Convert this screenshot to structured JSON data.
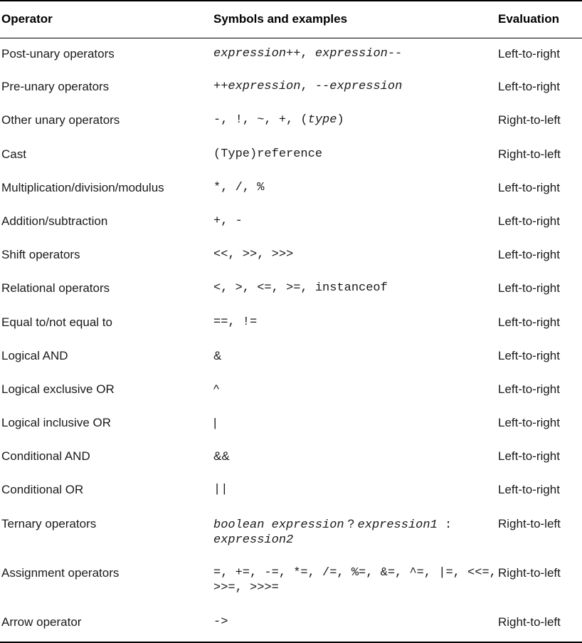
{
  "headers": {
    "operator": "Operator",
    "symbols": "Symbols and examples",
    "evaluation": "Evaluation"
  },
  "rows": [
    {
      "operator": "Post-unary operators",
      "symbols": [
        [
          "expression++",
          "it"
        ],
        [
          ", ",
          ""
        ],
        [
          "expression--",
          "it"
        ]
      ],
      "evaluation": "Left-to-right"
    },
    {
      "operator": "Pre-unary operators",
      "symbols": [
        [
          "++",
          ""
        ],
        [
          "expression",
          "it"
        ],
        [
          ", --",
          ""
        ],
        [
          "expression",
          "it"
        ]
      ],
      "evaluation": "Left-to-right"
    },
    {
      "operator": "Other unary operators",
      "symbols": [
        [
          "-, !, ~, +, (",
          ""
        ],
        [
          "type",
          "it"
        ],
        [
          ")",
          ""
        ]
      ],
      "evaluation": "Right-to-left"
    },
    {
      "operator": "Cast",
      "symbols": [
        [
          "(Type)reference",
          ""
        ]
      ],
      "evaluation": "Right-to-left"
    },
    {
      "operator": "Multiplication/division/modulus",
      "symbols": [
        [
          "*, /, %",
          ""
        ]
      ],
      "evaluation": "Left-to-right"
    },
    {
      "operator": "Addition/subtraction",
      "symbols": [
        [
          "+, -",
          ""
        ]
      ],
      "evaluation": "Left-to-right"
    },
    {
      "operator": "Shift operators",
      "symbols": [
        [
          "<<, >>, >>>",
          ""
        ]
      ],
      "evaluation": "Left-to-right"
    },
    {
      "operator": "Relational operators",
      "symbols": [
        [
          "<, >, <=, >=, instanceof",
          ""
        ]
      ],
      "evaluation": "Left-to-right"
    },
    {
      "operator": "Equal to/not equal to",
      "symbols": [
        [
          "==, !=",
          ""
        ]
      ],
      "evaluation": "Left-to-right"
    },
    {
      "operator": "Logical AND",
      "symbols": [
        [
          "&",
          "sans"
        ]
      ],
      "evaluation": "Left-to-right"
    },
    {
      "operator": "Logical exclusive OR",
      "symbols": [
        [
          "^",
          "sans"
        ]
      ],
      "evaluation": "Left-to-right"
    },
    {
      "operator": "Logical inclusive OR",
      "symbols": [
        [
          "|",
          "sans"
        ]
      ],
      "evaluation": "Left-to-right"
    },
    {
      "operator": "Conditional AND",
      "symbols": [
        [
          "&&",
          "sans"
        ]
      ],
      "evaluation": "Left-to-right"
    },
    {
      "operator": "Conditional OR",
      "symbols": [
        [
          "||",
          ""
        ]
      ],
      "evaluation": "Left-to-right"
    },
    {
      "operator": "Ternary operators",
      "symbols": [
        [
          "boolean expression",
          "it"
        ],
        [
          " ? ",
          "sans"
        ],
        [
          "expression1",
          "it"
        ],
        [
          " : ",
          ""
        ],
        [
          "expression2",
          "it"
        ]
      ],
      "evaluation": "Right-to-left"
    },
    {
      "operator": "Assignment operators",
      "symbols": [
        [
          "=, +=, -=, *=, /=, %=, &=, ^=, |=, <<=, >>=, >>>=",
          ""
        ]
      ],
      "evaluation": "Right-to-left"
    },
    {
      "operator": "Arrow operator",
      "symbols": [
        [
          "->",
          ""
        ]
      ],
      "evaluation": "Right-to-left"
    }
  ]
}
